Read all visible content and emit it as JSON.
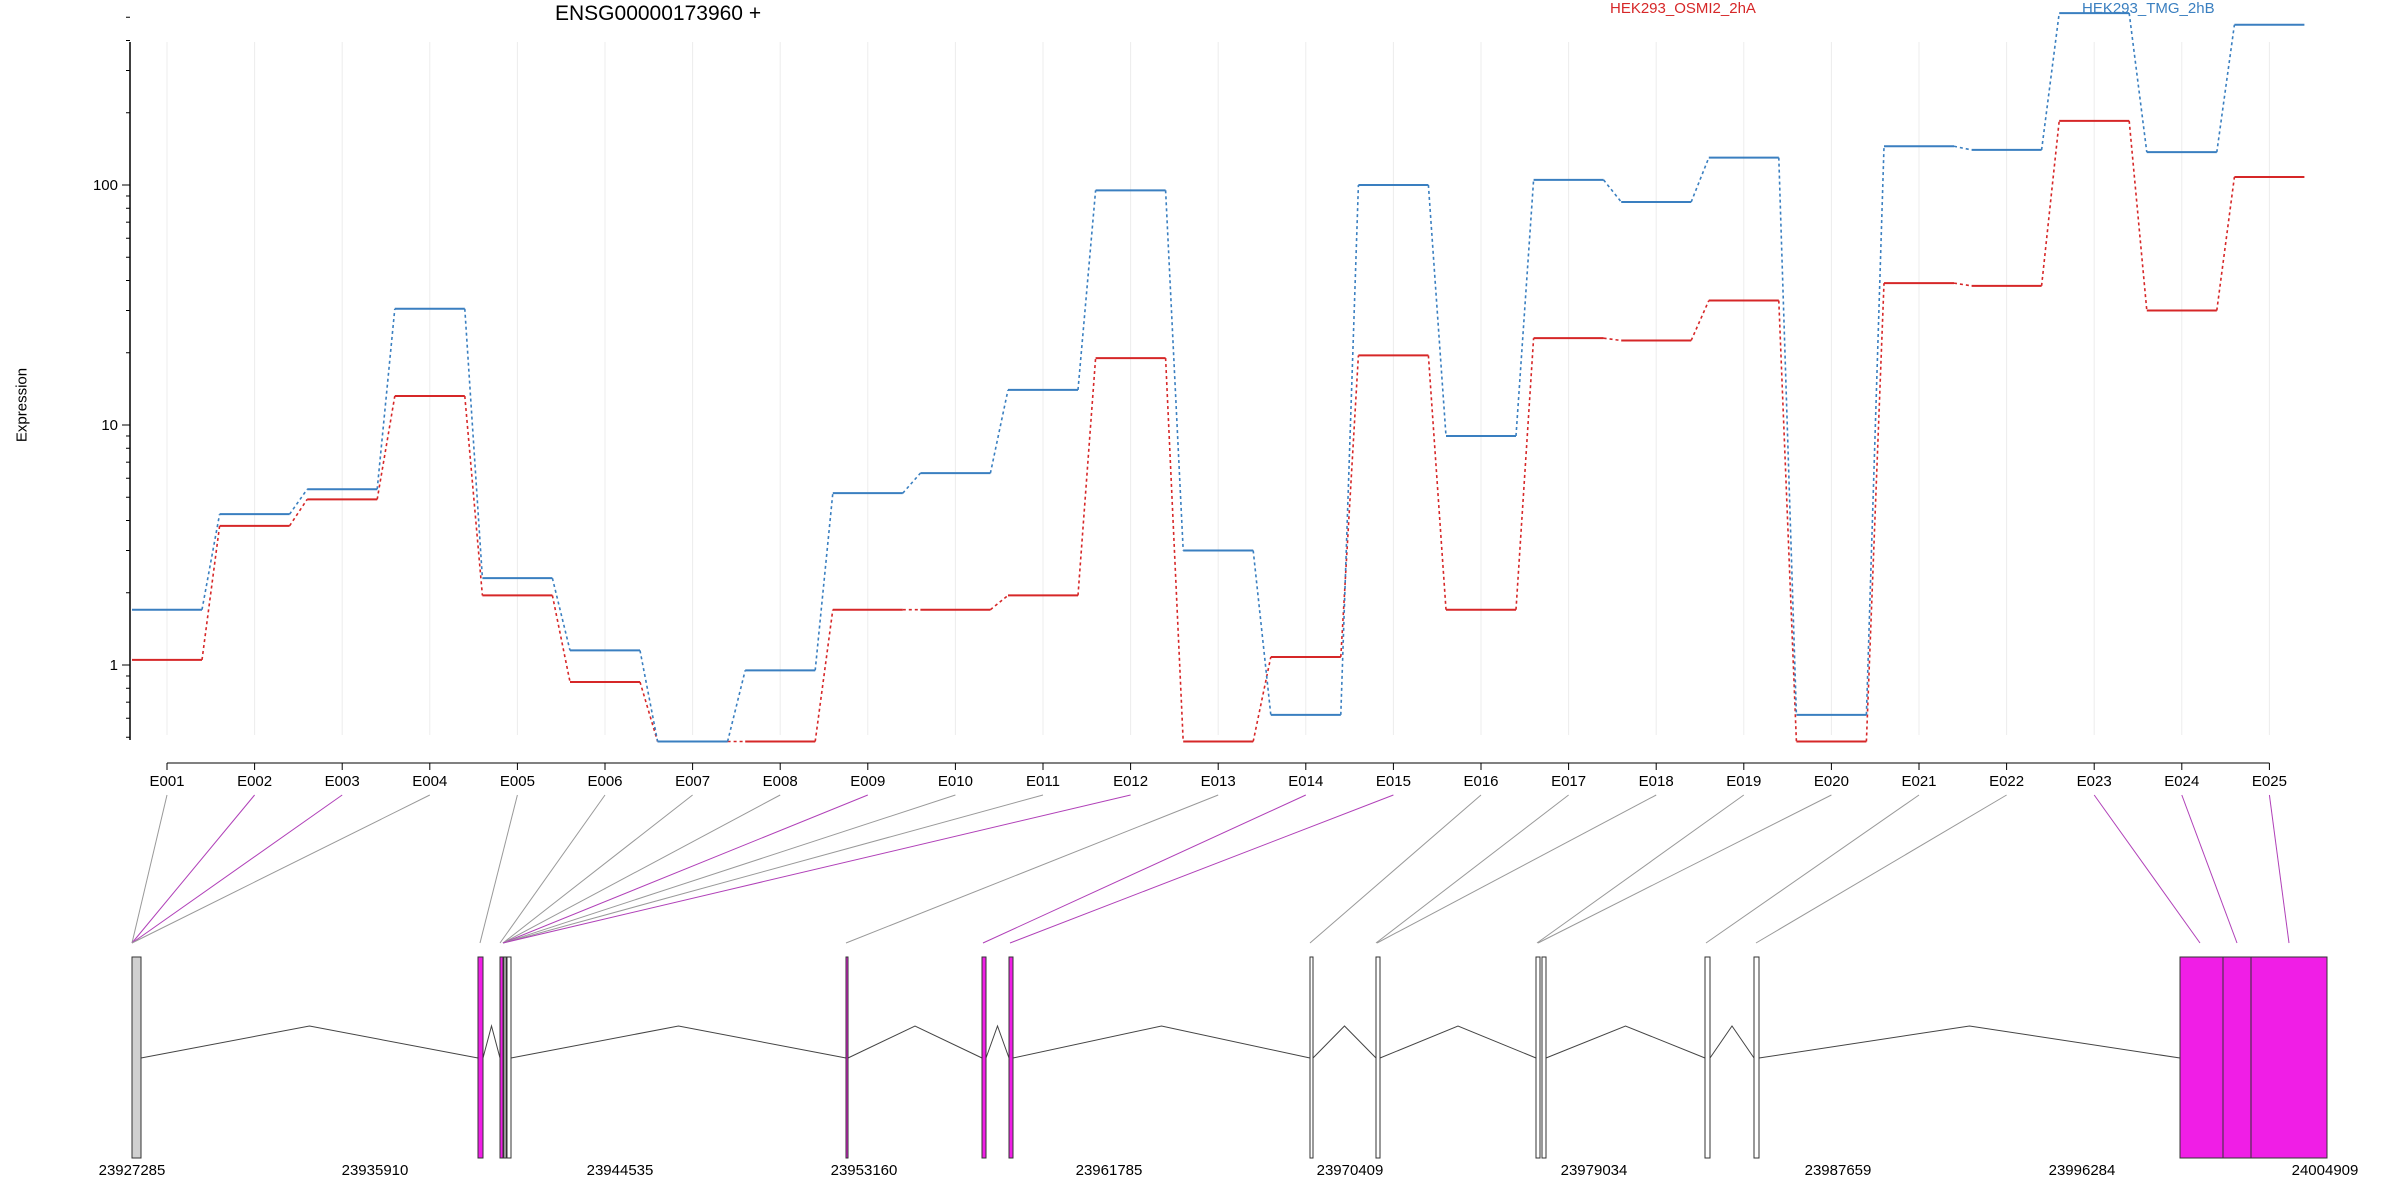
{
  "chart_data": {
    "type": "line",
    "title": "ENSG00000173960 +",
    "ylabel": "Expression",
    "xlabel": "",
    "y_scale": "log",
    "ylim": [
      0.45,
      650
    ],
    "y_ticks": [
      1,
      10,
      100
    ],
    "y_tick_labels": [
      "1",
      "10",
      "100"
    ],
    "grid": "vertical lines at exon bins",
    "legend_placement": "top",
    "categories": [
      "E001",
      "E002",
      "E003",
      "E004",
      "E005",
      "E006",
      "E007",
      "E008",
      "E009",
      "E010",
      "E011",
      "E012",
      "E013",
      "E014",
      "E015",
      "E016",
      "E017",
      "E018",
      "E019",
      "E020",
      "E021",
      "E022",
      "E023",
      "E024",
      "E025"
    ],
    "series": [
      {
        "name": "HEK293_OSMI2_2hA",
        "color": "#d62728",
        "values": [
          1.05,
          3.8,
          4.9,
          13.2,
          1.95,
          0.85,
          0.48,
          0.48,
          1.7,
          1.7,
          1.95,
          19.0,
          0.48,
          1.08,
          19.5,
          1.7,
          23.0,
          22.5,
          33.0,
          0.48,
          39.0,
          38.0,
          185.0,
          30.0,
          108.0
        ]
      },
      {
        "name": "HEK293_TMG_2hB",
        "color": "#3a7fc0",
        "values": [
          1.7,
          4.25,
          5.4,
          30.5,
          2.3,
          1.15,
          0.48,
          0.95,
          5.2,
          6.3,
          14.0,
          95.0,
          3.0,
          0.62,
          100.0,
          9.0,
          105.0,
          85.0,
          130.0,
          0.62,
          145.0,
          140.0,
          520.0,
          137.0,
          465.0
        ]
      }
    ],
    "gene_model": {
      "coordinate_labels": [
        "23927285",
        "23935910",
        "23944535",
        "23953160",
        "23961785",
        "23970409",
        "23979034",
        "23987659",
        "23996284",
        "24004909"
      ],
      "highlighted_exons": [
        "E002",
        "E003",
        "E009",
        "E012",
        "E014",
        "E015",
        "E023",
        "E024",
        "E025"
      ],
      "highlight_color": "#f01ee6"
    }
  }
}
